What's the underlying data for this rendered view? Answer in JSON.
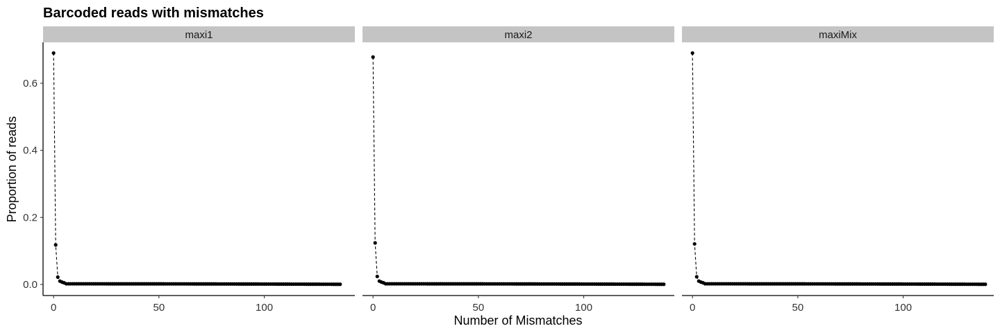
{
  "chart_data": {
    "type": "line",
    "title": "Barcoded reads with mismatches",
    "xlabel": "Number of Mismatches",
    "ylabel": "Proportion of reads",
    "xlim": [
      -5,
      143
    ],
    "ylim": [
      -0.033,
      0.722
    ],
    "x_ticks": [
      0,
      50,
      100
    ],
    "x_tick_labels": [
      "0",
      "50",
      "100"
    ],
    "y_ticks": [
      0.0,
      0.2,
      0.4,
      0.6
    ],
    "y_tick_labels": [
      "0.0",
      "0.2",
      "0.4",
      "0.6"
    ],
    "grid": false,
    "line_style": "dashed",
    "marker": "point",
    "facets": [
      {
        "label": "maxi1",
        "head": [
          0.69,
          0.118,
          0.022,
          0.01,
          0.007,
          0.005
        ],
        "tail": 0.002,
        "x_max": 136
      },
      {
        "label": "maxi2",
        "head": [
          0.678,
          0.124,
          0.024,
          0.01,
          0.007,
          0.005
        ],
        "tail": 0.002,
        "x_max": 138
      },
      {
        "label": "maxiMix",
        "head": [
          0.69,
          0.121,
          0.023,
          0.01,
          0.007,
          0.005
        ],
        "tail": 0.002,
        "x_max": 139
      }
    ]
  }
}
